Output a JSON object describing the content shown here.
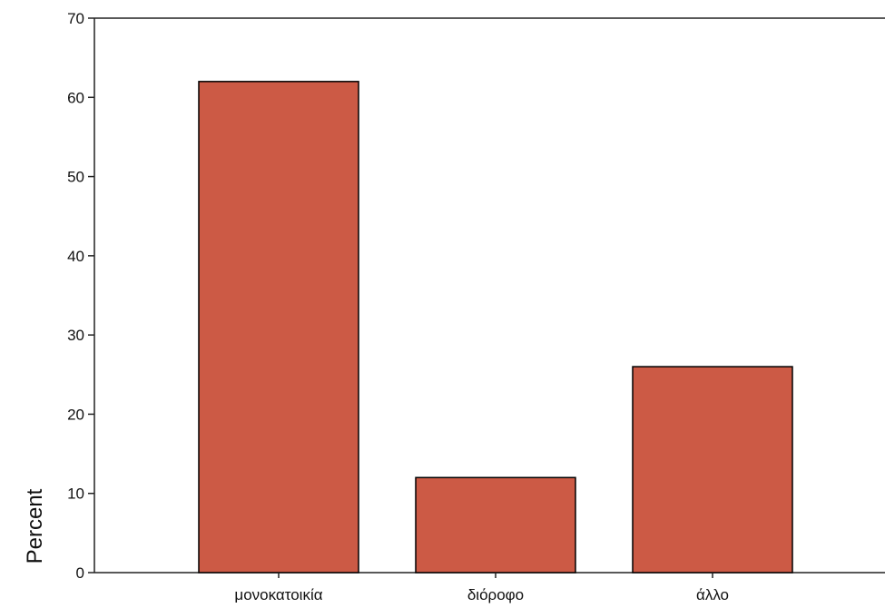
{
  "chart_data": {
    "type": "bar",
    "title": "",
    "xlabel": "",
    "ylabel": "Percent",
    "ylim": [
      0,
      70
    ],
    "yticks": [
      0,
      10,
      20,
      30,
      40,
      50,
      60,
      70
    ],
    "categories": [
      "μονοκατοικία",
      "διόροφο",
      "άλλο"
    ],
    "values": [
      62,
      12,
      26
    ],
    "grid": false,
    "legend": "none",
    "bar_color": "#cc5a45",
    "bar_edge_color": "#000000"
  }
}
